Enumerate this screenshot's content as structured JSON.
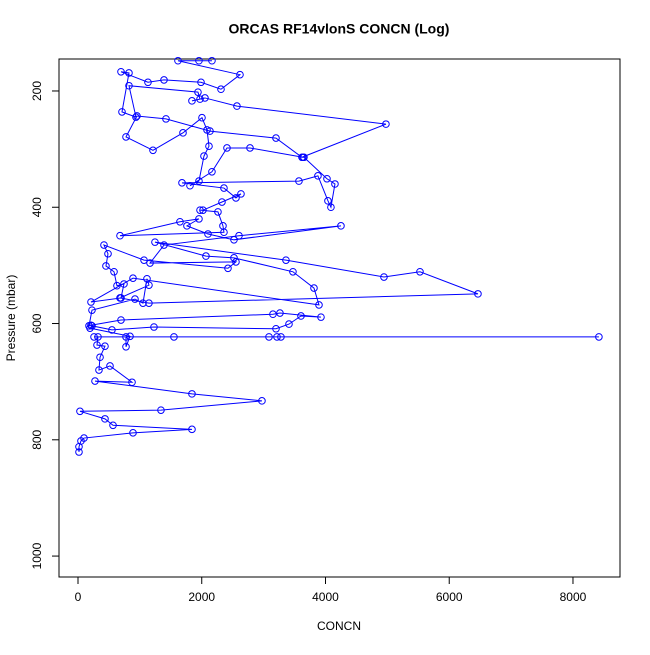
{
  "chart_data": {
    "type": "scatter",
    "mode": "lines+markers",
    "title": "ORCAS RF14vlonS CONCN (Log)",
    "x_label": "CONCN",
    "y_label": "Pressure (mbar)",
    "x": [
      16,
      16,
      48,
      97,
      889,
      1842,
      566,
      436,
      32,
      1341,
      2973,
      1842,
      275,
      873,
      517,
      339,
      356,
      436,
      307,
      323,
      1551,
      8419,
      3216,
      3280,
      3087,
      259,
      776,
      776,
      840,
      194,
      226,
      549,
      1228,
      3200,
      3410,
      3604,
      3927,
      3264,
      3151,
      695,
      210,
      178,
      226,
      921,
      1050,
      1115,
      1147,
      679,
      1147,
      6464,
      5527,
      4945,
      3361,
      1244,
      2068,
      2521,
      3474,
      3814,
      3895,
      889,
      210,
      695,
      743,
      630,
      582,
      452,
      485,
      420,
      1067,
      2424,
      2553,
      1164,
      1390,
      2602,
      4250,
      2521,
      2101,
      1761,
      1955,
      1648,
      679,
      2359,
      2343,
      2262,
      1972,
      2020,
      2327,
      2634,
      2553,
      2359,
      1681,
      3571,
      3878,
      4040,
      4088,
      4153,
      4024,
      3652,
      3636,
      2780,
      2408,
      2165,
      1810,
      1955,
      2036,
      2117,
      2085,
      2004,
      1697,
      1212,
      776,
      953,
      1422,
      2133,
      3200,
      3620,
      4977,
      2569,
      2052,
      1842,
      1972,
      1939,
      824,
      937,
      711,
      824,
      695,
      1131,
      1390,
      1988,
      2311,
      2618,
      1616,
      1955,
      2165
    ],
    "series": [
      {
        "color": "#0000ff",
        "values": [
          821,
          812,
          802,
          797,
          788,
          782,
          775,
          764,
          751,
          749,
          733,
          721,
          699,
          701,
          673,
          680,
          658,
          639,
          637,
          623,
          623,
          623,
          623,
          623,
          623,
          623,
          623,
          640,
          622,
          608,
          604,
          611,
          606,
          609,
          601,
          587,
          589,
          582,
          584,
          594,
          603,
          604,
          577,
          558,
          565,
          523,
          534,
          556,
          565,
          549,
          511,
          520,
          491,
          460,
          484,
          487,
          511,
          539,
          568,
          522,
          563,
          556,
          532,
          535,
          511,
          501,
          480,
          465,
          491,
          505,
          494,
          496,
          465,
          449,
          432,
          456,
          446,
          432,
          420,
          425,
          449,
          443,
          432,
          408,
          405,
          405,
          391,
          377,
          384,
          367,
          358,
          355,
          346,
          389,
          400,
          360,
          351,
          314,
          314,
          298,
          298,
          339,
          363,
          355,
          312,
          295,
          267,
          246,
          272,
          302,
          279,
          243,
          248,
          269,
          281,
          314,
          257,
          226,
          212,
          217,
          214,
          202,
          191,
          245,
          236,
          169,
          167,
          185,
          181,
          185,
          197,
          172,
          148,
          148,
          148
        ]
      }
    ],
    "xlim": [
      -307,
      8760
    ],
    "ylim": [
      145,
      1036
    ],
    "y_inverted": true,
    "xticks": [
      0,
      2000,
      4000,
      6000,
      8000
    ],
    "yticks": [
      200,
      400,
      600,
      800,
      1000
    ]
  }
}
